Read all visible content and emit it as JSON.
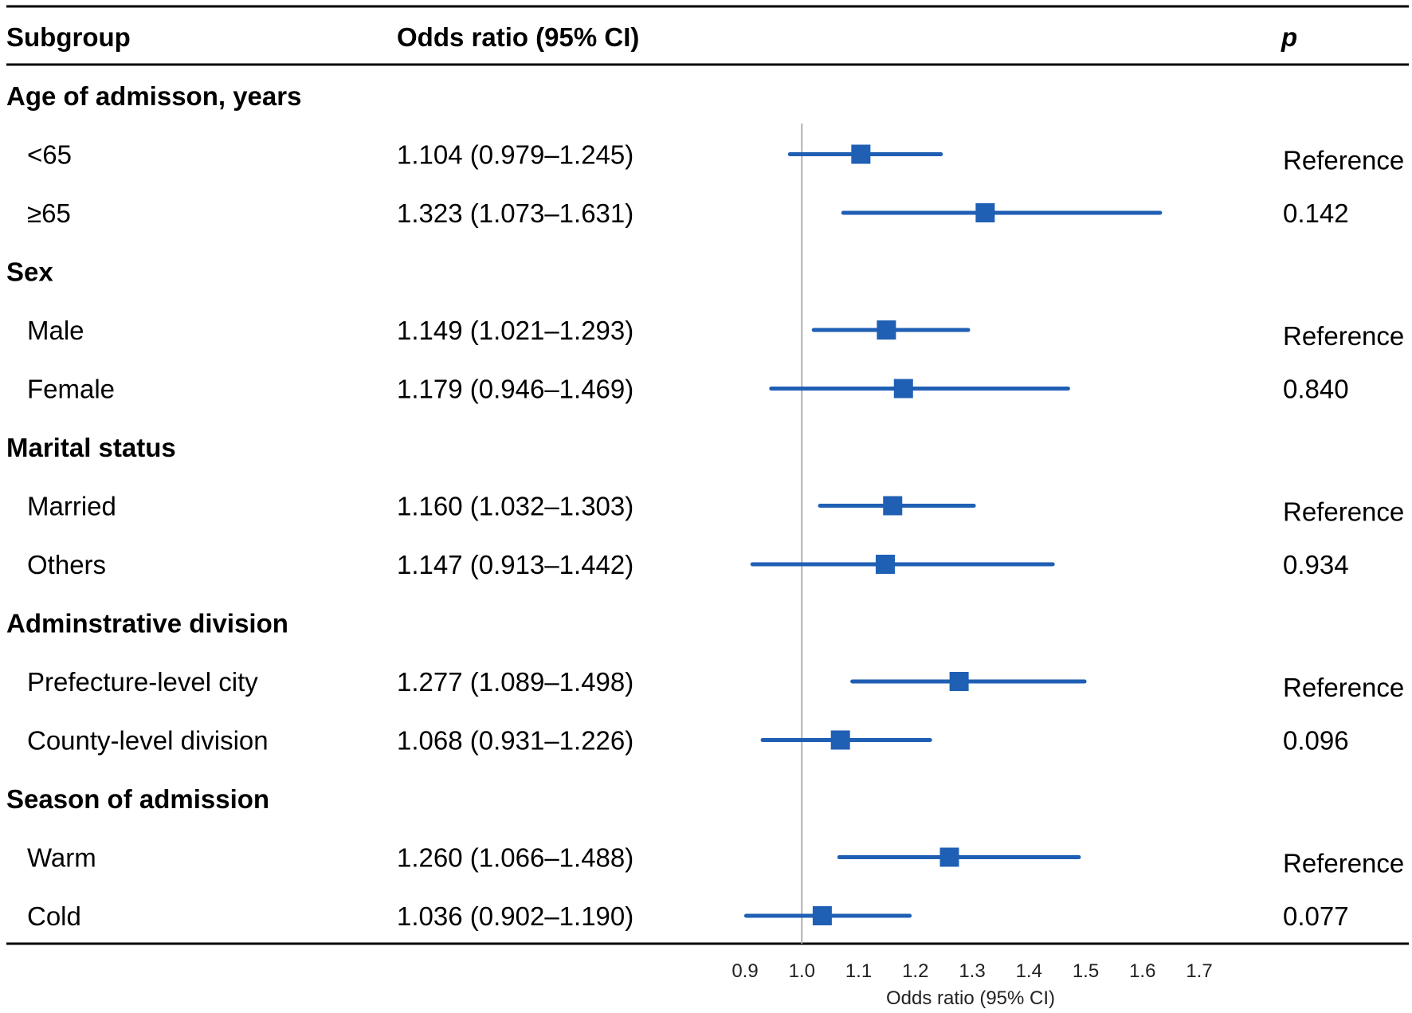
{
  "colors": {
    "accent": "#1f5fb4",
    "text": "#111111",
    "rule": "#000000",
    "refline": "#b0b0b0"
  },
  "headers": {
    "subgroup": "Subgroup",
    "or": "Odds ratio (95% CI)",
    "p": "p"
  },
  "chart_data": {
    "type": "forest",
    "title": "",
    "xlabel": "Odds ratio (95% CI)",
    "xlim": [
      0.9,
      1.7
    ],
    "ticks": [
      "0.9",
      "1.0",
      "1.1",
      "1.2",
      "1.3",
      "1.4",
      "1.5",
      "1.6",
      "1.7"
    ],
    "tick_values": [
      0.9,
      1.0,
      1.1,
      1.2,
      1.3,
      1.4,
      1.5,
      1.6,
      1.7
    ],
    "reference_value": 1.0,
    "groups": [
      {
        "name": "Age of admisson, years",
        "rows": [
          {
            "label": "<65",
            "or_text": "1.104 (0.979–1.245)",
            "or": 1.104,
            "lo": 0.979,
            "hi": 1.245,
            "p": "Reference"
          },
          {
            "label": "≥65",
            "or_text": "1.323 (1.073–1.631)",
            "or": 1.323,
            "lo": 1.073,
            "hi": 1.631,
            "p": "0.142"
          }
        ]
      },
      {
        "name": "Sex",
        "rows": [
          {
            "label": "Male",
            "or_text": "1.149 (1.021–1.293)",
            "or": 1.149,
            "lo": 1.021,
            "hi": 1.293,
            "p": "Reference"
          },
          {
            "label": "Female",
            "or_text": "1.179 (0.946–1.469)",
            "or": 1.179,
            "lo": 0.946,
            "hi": 1.469,
            "p": "0.840"
          }
        ]
      },
      {
        "name": "Marital status",
        "rows": [
          {
            "label": "Married",
            "or_text": "1.160 (1.032–1.303)",
            "or": 1.16,
            "lo": 1.032,
            "hi": 1.303,
            "p": "Reference"
          },
          {
            "label": "Others",
            "or_text": "1.147 (0.913–1.442)",
            "or": 1.147,
            "lo": 0.913,
            "hi": 1.442,
            "p": "0.934"
          }
        ]
      },
      {
        "name": "Adminstrative division",
        "rows": [
          {
            "label": "Prefecture-level city",
            "or_text": "1.277 (1.089–1.498)",
            "or": 1.277,
            "lo": 1.089,
            "hi": 1.498,
            "p": "Reference"
          },
          {
            "label": "County-level division",
            "or_text": "1.068 (0.931–1.226)",
            "or": 1.068,
            "lo": 0.931,
            "hi": 1.226,
            "p": "0.096"
          }
        ]
      },
      {
        "name": "Season of admission",
        "rows": [
          {
            "label": "Warm",
            "or_text": "1.260 (1.066–1.488)",
            "or": 1.26,
            "lo": 1.066,
            "hi": 1.488,
            "p": "Reference"
          },
          {
            "label": "Cold",
            "or_text": "1.036 (0.902–1.190)",
            "or": 1.036,
            "lo": 0.902,
            "hi": 1.19,
            "p": "0.077"
          }
        ]
      }
    ]
  }
}
